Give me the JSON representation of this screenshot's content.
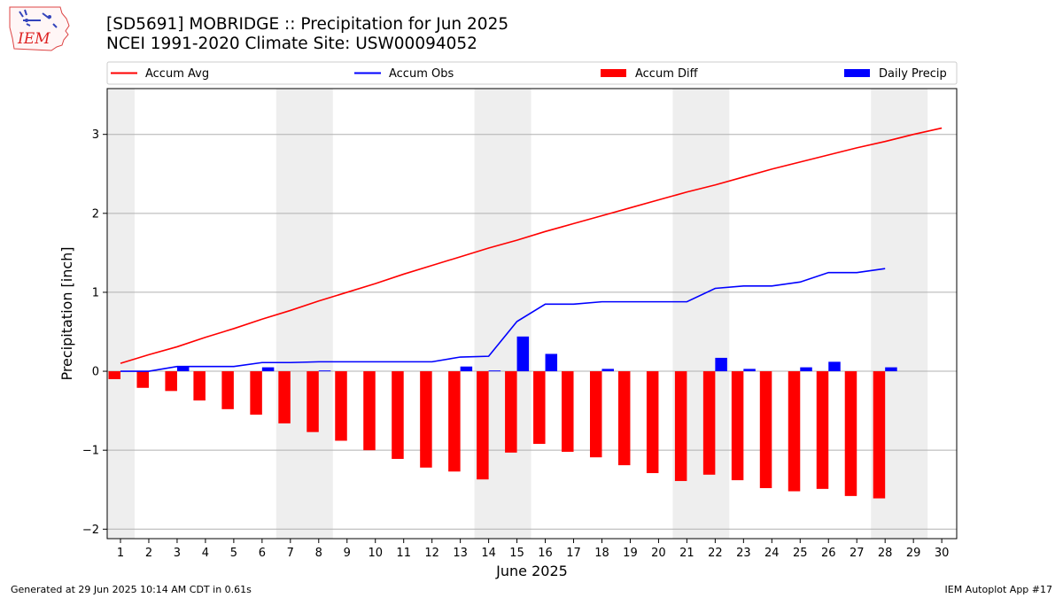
{
  "header": {
    "title_line1": "[SD5691] MOBRIDGE :: Precipitation for Jun 2025",
    "title_line2": "NCEI 1991-2020 Climate Site: USW00094052"
  },
  "logo": {
    "text": "IEM"
  },
  "footer": {
    "left": "Generated at 29 Jun 2025 10:14 AM CDT in 0.61s",
    "right": "IEM Autoplot App #17"
  },
  "colors": {
    "avg": "#ff0000",
    "obs": "#0000ff",
    "diff": "#ff0000",
    "daily": "#0000ff",
    "weekend": "#eeeeee",
    "grid": "#b0b0b0"
  },
  "chart_data": {
    "type": "bar",
    "xlabel": "June 2025",
    "ylabel": "Precipitation [inch]",
    "ylim": [
      -2.12,
      3.58
    ],
    "yticks": [
      -2,
      -1,
      0,
      1,
      2,
      3
    ],
    "ytick_labels": [
      "−2",
      "−1",
      "0",
      "1",
      "2",
      "3"
    ],
    "days": [
      1,
      2,
      3,
      4,
      5,
      6,
      7,
      8,
      9,
      10,
      11,
      12,
      13,
      14,
      15,
      16,
      17,
      18,
      19,
      20,
      21,
      22,
      23,
      24,
      25,
      26,
      27,
      28,
      29,
      30
    ],
    "weekend_spans": [
      [
        1,
        1
      ],
      [
        7,
        8
      ],
      [
        14,
        15
      ],
      [
        21,
        22
      ],
      [
        28,
        29
      ]
    ],
    "legend": [
      "Accum Avg",
      "Accum Obs",
      "Accum Diff",
      "Daily Precip"
    ],
    "legend_position": "top",
    "grid": "horizontal",
    "series": [
      {
        "name": "Accum Avg",
        "kind": "line",
        "values": [
          0.1,
          0.21,
          0.31,
          0.43,
          0.54,
          0.66,
          0.77,
          0.89,
          1.0,
          1.11,
          1.23,
          1.34,
          1.45,
          1.56,
          1.66,
          1.77,
          1.87,
          1.97,
          2.07,
          2.17,
          2.27,
          2.36,
          2.46,
          2.56,
          2.65,
          2.74,
          2.83,
          2.91,
          3.0,
          3.08
        ]
      },
      {
        "name": "Accum Obs",
        "kind": "line",
        "values": [
          0.0,
          0.0,
          0.06,
          0.06,
          0.06,
          0.11,
          0.11,
          0.12,
          0.12,
          0.12,
          0.12,
          0.12,
          0.18,
          0.19,
          0.63,
          0.85,
          0.85,
          0.88,
          0.88,
          0.88,
          0.88,
          1.05,
          1.08,
          1.08,
          1.13,
          1.25,
          1.25,
          1.3,
          null,
          null
        ]
      },
      {
        "name": "Accum Diff",
        "kind": "bar",
        "values": [
          -0.1,
          -0.21,
          -0.25,
          -0.37,
          -0.48,
          -0.55,
          -0.66,
          -0.77,
          -0.88,
          -1.0,
          -1.11,
          -1.22,
          -1.27,
          -1.37,
          -1.03,
          -0.92,
          -1.02,
          -1.09,
          -1.19,
          -1.29,
          -1.39,
          -1.31,
          -1.38,
          -1.48,
          -1.52,
          -1.49,
          -1.58,
          -1.61,
          null,
          null
        ]
      },
      {
        "name": "Daily Precip",
        "kind": "bar",
        "values": [
          0.0,
          0.0,
          0.06,
          0.0,
          0.0,
          0.05,
          0.0,
          0.01,
          0.0,
          0.0,
          0.0,
          0.0,
          0.06,
          0.01,
          0.44,
          0.22,
          0.0,
          0.03,
          0.0,
          0.0,
          0.0,
          0.17,
          0.03,
          0.0,
          0.05,
          0.12,
          0.0,
          0.05,
          null,
          null
        ]
      }
    ]
  }
}
